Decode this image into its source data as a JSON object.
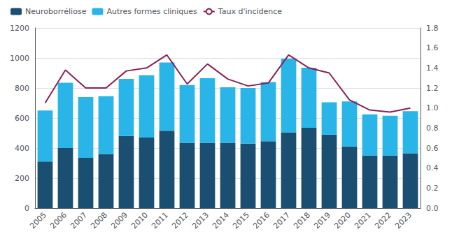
{
  "chart_data": {
    "type": "bar",
    "stacked": true,
    "grid": true,
    "legend": "upper left",
    "categories": [
      "2005",
      "2006",
      "2007",
      "2008",
      "2009",
      "2010",
      "2011",
      "2012",
      "2013",
      "2014",
      "2015",
      "2016",
      "2017",
      "2018",
      "2019",
      "2020",
      "2021",
      "2022",
      "2023"
    ],
    "series": [
      {
        "name": "Neuroborréliose",
        "type": "bar",
        "color": "#1a4f72",
        "values": [
          310,
          400,
          335,
          360,
          480,
          470,
          515,
          435,
          435,
          435,
          430,
          445,
          505,
          535,
          490,
          410,
          350,
          350,
          365
        ]
      },
      {
        "name": "Autres formes cliniques",
        "type": "bar",
        "color": "#29b5e8",
        "values": [
          340,
          435,
          405,
          385,
          380,
          415,
          455,
          385,
          430,
          370,
          370,
          395,
          490,
          400,
          215,
          300,
          275,
          265,
          280
        ]
      },
      {
        "name": "Taux d'incidence",
        "type": "line",
        "axis": "y2",
        "color": "#882255",
        "values": [
          1.05,
          1.38,
          1.2,
          1.2,
          1.37,
          1.4,
          1.53,
          1.24,
          1.44,
          1.29,
          1.22,
          1.25,
          1.53,
          1.4,
          1.35,
          1.08,
          0.98,
          0.96,
          1.0
        ]
      }
    ],
    "ylim": [
      0,
      1200
    ],
    "yticks": [
      0,
      200,
      400,
      600,
      800,
      1000,
      1200
    ],
    "y2lim": [
      0,
      1.8
    ],
    "y2ticks": [
      {
        "value": 0,
        "label": "0.0"
      },
      0.2,
      0.4,
      0.6,
      0.8,
      {
        "value": 1,
        "label": "1.0"
      },
      1.2,
      1.4,
      1.6,
      1.8
    ]
  }
}
